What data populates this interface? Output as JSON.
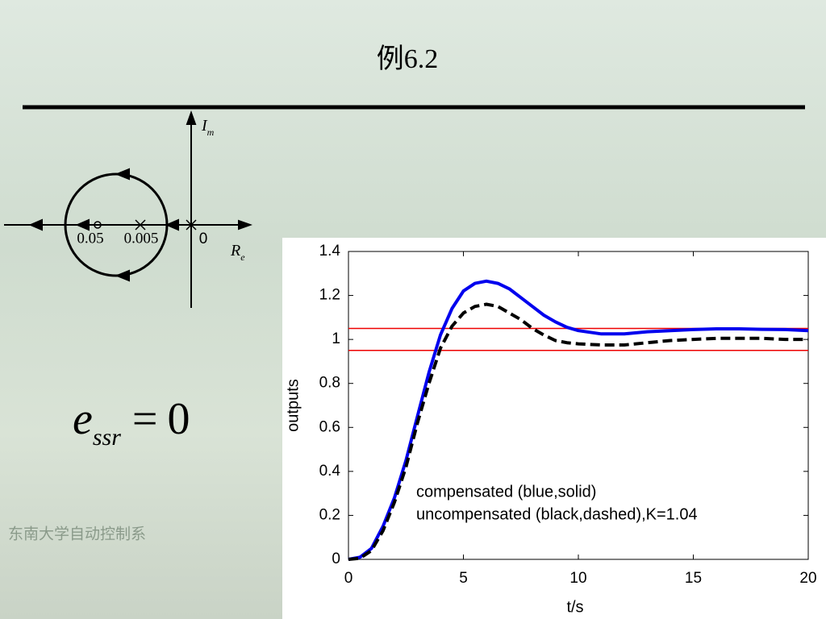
{
  "title": "例6.2",
  "footer": "东南大学自动控制系",
  "diagram": {
    "imag_axis": {
      "symbol": "I",
      "subscript": "m"
    },
    "real_axis": {
      "symbol": "R",
      "subscript": "e"
    },
    "labels": [
      "0.05",
      "0.005",
      "0"
    ]
  },
  "equation": {
    "symbol": "e",
    "subscript": "ssr",
    "operator": "=",
    "rhs": "0"
  },
  "chart_data": {
    "type": "line",
    "xlabel": "t/s",
    "ylabel": "outputs",
    "x": [
      0,
      0.5,
      1,
      1.5,
      2,
      2.5,
      3,
      3.5,
      4,
      4.5,
      5,
      5.5,
      6,
      6.5,
      7,
      7.5,
      8,
      8.5,
      9,
      9.5,
      10,
      11,
      12,
      13,
      14,
      15,
      16,
      17,
      18,
      19,
      20
    ],
    "series": [
      {
        "color": "#0000ee",
        "style": "solid",
        "values": [
          0,
          0.01,
          0.05,
          0.15,
          0.28,
          0.45,
          0.65,
          0.85,
          1.02,
          1.14,
          1.22,
          1.255,
          1.265,
          1.255,
          1.23,
          1.19,
          1.15,
          1.11,
          1.08,
          1.055,
          1.04,
          1.025,
          1.025,
          1.035,
          1.04,
          1.045,
          1.048,
          1.048,
          1.046,
          1.045,
          1.04
        ]
      },
      {
        "color": "#000000",
        "style": "dashed",
        "values": [
          0,
          0.005,
          0.04,
          0.13,
          0.26,
          0.42,
          0.62,
          0.8,
          0.96,
          1.06,
          1.12,
          1.15,
          1.16,
          1.15,
          1.12,
          1.09,
          1.05,
          1.02,
          0.995,
          0.985,
          0.98,
          0.975,
          0.975,
          0.985,
          0.995,
          1.0,
          1.005,
          1.005,
          1.005,
          1.0,
          1.0
        ]
      }
    ],
    "hlines": [
      {
        "value": 1.05,
        "color": "#ee0000"
      },
      {
        "value": 0.95,
        "color": "#ee0000"
      }
    ],
    "annotations": [
      "compensated (blue,solid)",
      "uncompensated (black,dashed),K=1.04"
    ],
    "xlim": [
      0,
      20
    ],
    "xticks": [
      0,
      5,
      10,
      15,
      20
    ],
    "ylim": [
      0,
      1.4
    ],
    "yticks": [
      0,
      0.2,
      0.4,
      0.6,
      0.8,
      1,
      1.2,
      1.4
    ]
  }
}
